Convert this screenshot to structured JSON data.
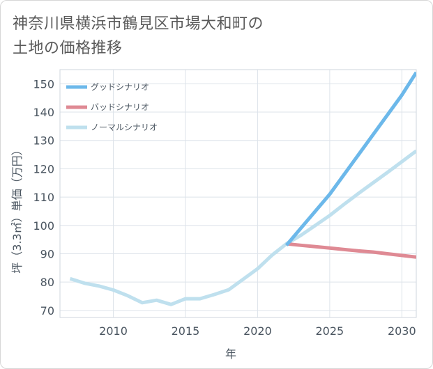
{
  "title": {
    "line1": "神奈川県横浜市鶴見区市場大和町の",
    "line2": "土地の価格推移"
  },
  "colors": {
    "good": "#6cb8ea",
    "bad": "#df8a94",
    "normal": "#bfe0ee",
    "grid": "#dde3ea",
    "axis": "#4a5560"
  },
  "chart_data": {
    "type": "line",
    "title": "神奈川県横浜市鶴見区市場大和町の土地の価格推移",
    "xlabel": "年",
    "ylabel": "坪（3.3㎡）単価（万円）",
    "xlim": [
      2006.3,
      2031
    ],
    "ylim": [
      67.5,
      155
    ],
    "xticks": [
      2010,
      2015,
      2020,
      2025,
      2030
    ],
    "yticks": [
      70,
      80,
      90,
      100,
      110,
      120,
      130,
      140,
      150
    ],
    "grid": true,
    "legend_position": "top-left",
    "series": [
      {
        "name": "グッドシナリオ",
        "color_key": "good",
        "x": [
          2022,
          2023,
          2024,
          2025,
          2026,
          2027,
          2028,
          2029,
          2030,
          2031
        ],
        "y": [
          93,
          99,
          105,
          111,
          118,
          125,
          132,
          139,
          146,
          154
        ]
      },
      {
        "name": "バッドシナリオ",
        "color_key": "bad",
        "x": [
          2022,
          2023,
          2024,
          2025,
          2026,
          2027,
          2028,
          2029,
          2030,
          2031
        ],
        "y": [
          93.5,
          93.0,
          92.5,
          92.0,
          91.5,
          91.0,
          90.6,
          90.0,
          89.4,
          88.8
        ]
      },
      {
        "name": "ノーマルシナリオ",
        "color_key": "normal",
        "x": [
          2007,
          2008,
          2009,
          2010,
          2011,
          2012,
          2013,
          2014,
          2015,
          2016,
          2017,
          2018,
          2019,
          2020,
          2021,
          2022,
          2023,
          2024,
          2025,
          2026,
          2027,
          2028,
          2029,
          2030,
          2031
        ],
        "y": [
          81.2,
          79.6,
          78.6,
          77.2,
          75.2,
          72.7,
          73.6,
          72.1,
          74.1,
          74.1,
          75.6,
          77.3,
          81.0,
          84.7,
          89.5,
          93.5,
          96.5,
          100.0,
          103.5,
          107.5,
          111.3,
          115.0,
          118.7,
          122.5,
          126.3
        ]
      }
    ]
  }
}
